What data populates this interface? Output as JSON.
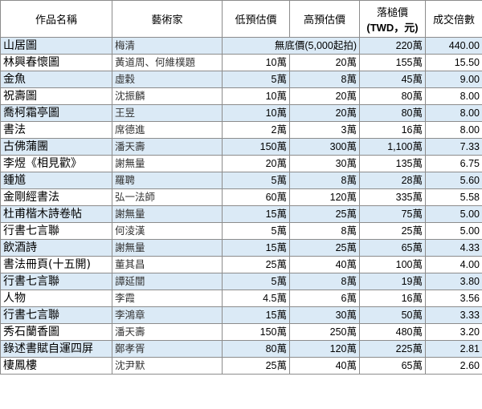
{
  "headers": {
    "name": "作品名稱",
    "artist": "藝術家",
    "low": "低預估價",
    "high": "高預估價",
    "hammer_line1": "落槌價",
    "hammer_line2": "(TWD，元)",
    "multiple": "成交倍數"
  },
  "rows": [
    {
      "name": "山居圖",
      "artist": "梅清",
      "low": "無底價(5,000起拍)",
      "high": "",
      "hammer": "220萬",
      "multiple": "440.00"
    },
    {
      "name": "林興春懷圖",
      "artist": "黃道周、何維樸題",
      "low": "10萬",
      "high": "20萬",
      "hammer": "155萬",
      "multiple": "15.50"
    },
    {
      "name": "金魚",
      "artist": "虛穀",
      "low": "5萬",
      "high": "8萬",
      "hammer": "45萬",
      "multiple": "9.00"
    },
    {
      "name": "祝壽圖",
      "artist": "沈振麟",
      "low": "10萬",
      "high": "20萬",
      "hammer": "80萬",
      "multiple": "8.00"
    },
    {
      "name": "喬柯霜亭圖",
      "artist": "王昱",
      "low": "10萬",
      "high": "20萬",
      "hammer": "80萬",
      "multiple": "8.00"
    },
    {
      "name": "書法",
      "artist": "席德進",
      "low": "2萬",
      "high": "3萬",
      "hammer": "16萬",
      "multiple": "8.00"
    },
    {
      "name": "古佛蒲團",
      "artist": "潘天壽",
      "low": "150萬",
      "high": "300萬",
      "hammer": "1,100萬",
      "multiple": "7.33"
    },
    {
      "name": "李煜《相見歡》",
      "artist": "謝無量",
      "low": "20萬",
      "high": "30萬",
      "hammer": "135萬",
      "multiple": "6.75"
    },
    {
      "name": "鍾馗",
      "artist": "羅聘",
      "low": "5萬",
      "high": "8萬",
      "hammer": "28萬",
      "multiple": "5.60"
    },
    {
      "name": "金剛經書法",
      "artist": "弘一法師",
      "low": "60萬",
      "high": "120萬",
      "hammer": "335萬",
      "multiple": "5.58"
    },
    {
      "name": "杜甫楷木詩卷帖",
      "artist": "謝無量",
      "low": "15萬",
      "high": "25萬",
      "hammer": "75萬",
      "multiple": "5.00"
    },
    {
      "name": "行書七言聯",
      "artist": "何淩漢",
      "low": "5萬",
      "high": "8萬",
      "hammer": "25萬",
      "multiple": "5.00"
    },
    {
      "name": "飲酒詩",
      "artist": "謝無量",
      "low": "15萬",
      "high": "25萬",
      "hammer": "65萬",
      "multiple": "4.33"
    },
    {
      "name": "書法冊頁(十五開)",
      "artist": "董其昌",
      "low": "25萬",
      "high": "40萬",
      "hammer": "100萬",
      "multiple": "4.00"
    },
    {
      "name": "行書七言聯",
      "artist": "譚延闓",
      "low": "5萬",
      "high": "8萬",
      "hammer": "19萬",
      "multiple": "3.80"
    },
    {
      "name": "人物",
      "artist": "李霞",
      "low": "4.5萬",
      "high": "6萬",
      "hammer": "16萬",
      "multiple": "3.56"
    },
    {
      "name": "行書七言聯",
      "artist": "李鴻章",
      "low": "15萬",
      "high": "30萬",
      "hammer": "50萬",
      "multiple": "3.33"
    },
    {
      "name": "秀石蘭香圖",
      "artist": "潘天壽",
      "low": "150萬",
      "high": "250萬",
      "hammer": "480萬",
      "multiple": "3.20"
    },
    {
      "name": "錄述書賦自運四屏",
      "artist": "鄭孝胥",
      "low": "80萬",
      "high": "120萬",
      "hammer": "225萬",
      "multiple": "2.81"
    },
    {
      "name": "棲鳳樓",
      "artist": "沈尹默",
      "low": "25萬",
      "high": "40萬",
      "hammer": "65萬",
      "multiple": "2.60"
    }
  ],
  "colors": {
    "row_shade": "#dbeaf6",
    "border": "#8c8c8c"
  }
}
